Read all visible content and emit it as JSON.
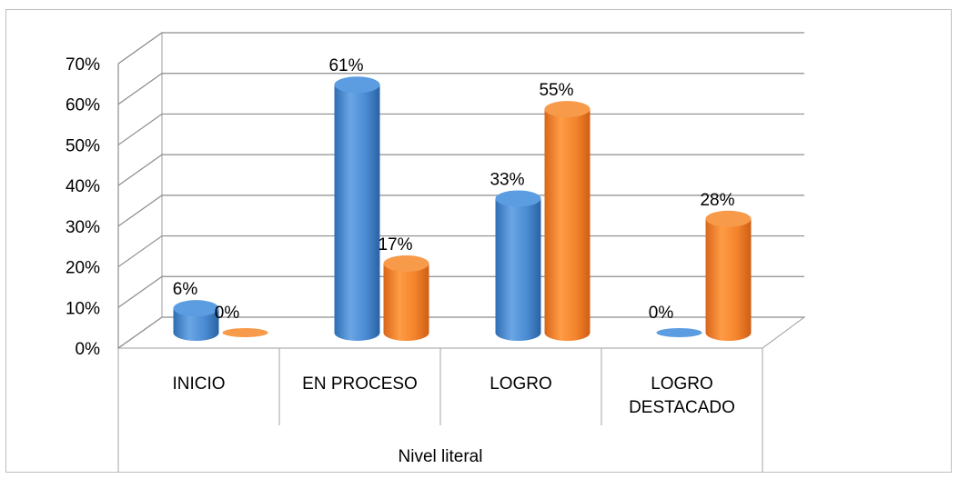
{
  "chart_data": {
    "type": "bar",
    "style": "3d-cylinder",
    "categories": [
      "INICIO",
      "EN PROCESO",
      "LOGRO",
      "LOGRO DESTACADO"
    ],
    "category_lines": [
      [
        "INICIO"
      ],
      [
        "EN PROCESO"
      ],
      [
        "LOGRO"
      ],
      [
        "LOGRO",
        "DESTACADO"
      ]
    ],
    "group_label": "Nivel literal",
    "series": [
      {
        "values": [
          6,
          61,
          33,
          0
        ],
        "color": "#4a90d9",
        "data_labels": [
          "6%",
          "61%",
          "33%",
          "0%"
        ]
      },
      {
        "values": [
          0,
          17,
          55,
          28
        ],
        "color": "#f0842c",
        "data_labels": [
          "0%",
          "17%",
          "55%",
          "28%"
        ]
      }
    ],
    "y_ticks": [
      0,
      10,
      20,
      30,
      40,
      50,
      60,
      70
    ],
    "y_tick_labels": [
      "0%",
      "10%",
      "20%",
      "30%",
      "40%",
      "50%",
      "60%",
      "70%"
    ],
    "ylim": [
      0,
      70
    ],
    "grid": true,
    "legend": "none"
  }
}
